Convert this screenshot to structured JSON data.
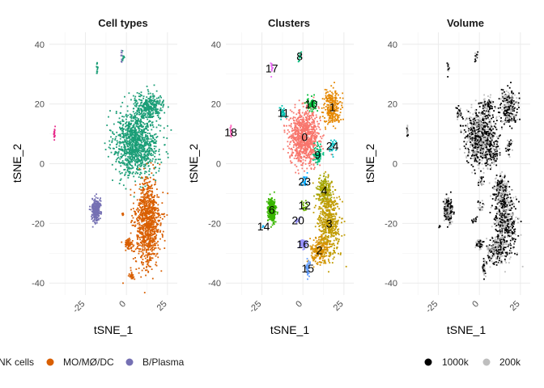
{
  "chart_data": [
    {
      "type": "scatter",
      "title": "Cell types",
      "xlabel": "tSNE_1",
      "ylabel": "tSNE_2",
      "xticks": [
        "-25",
        "0",
        "25"
      ],
      "yticks": [
        "-40",
        "-20",
        "0",
        "20",
        "40"
      ],
      "xlim": [
        -47,
        31
      ],
      "ylim": [
        -44,
        44
      ],
      "grid": true,
      "groups": [
        {
          "name": "NK cells",
          "color": "#1B9E77",
          "clusters": [
            {
              "center": [
                6,
                7
              ],
              "spread": [
                12,
                10
              ],
              "count": 1100
            },
            {
              "center": [
                14,
                19
              ],
              "spread": [
                8,
                4
              ],
              "count": 300
            },
            {
              "center": [
                -18,
                32
              ],
              "spread": [
                0.6,
                2
              ],
              "count": 14
            },
            {
              "center": [
                -2,
                36
              ],
              "spread": [
                1,
                2
              ],
              "count": 10
            }
          ]
        },
        {
          "name": "MO/MØ/DC",
          "color": "#D95F02",
          "clusters": [
            {
              "center": [
                13,
                -20
              ],
              "spread": [
                7,
                13
              ],
              "count": 950
            },
            {
              "center": [
                1,
                -27
              ],
              "spread": [
                2,
                1.5
              ],
              "count": 70
            },
            {
              "center": [
                3,
                -37
              ],
              "spread": [
                1.5,
                2
              ],
              "count": 25
            },
            {
              "center": [
                -2,
                -17
              ],
              "spread": [
                0.6,
                0.6
              ],
              "count": 6
            }
          ]
        },
        {
          "name": "B/Plasma",
          "color": "#7570B3",
          "clusters": [
            {
              "center": [
                -18.5,
                -15.5
              ],
              "spread": [
                2.2,
                3.5
              ],
              "count": 300
            },
            {
              "center": [
                -3,
                36
              ],
              "spread": [
                0.4,
                2
              ],
              "count": 10
            }
          ]
        },
        {
          "name": "",
          "color": "#E7298A",
          "clusters": [
            {
              "center": [
                -44,
                10.5
              ],
              "spread": [
                0.4,
                1.8
              ],
              "count": 18
            }
          ]
        }
      ],
      "legend": [
        "NK cells",
        "MO/MØ/DC",
        "B/Plasma"
      ],
      "legend_position": "bottom"
    },
    {
      "type": "scatter",
      "title": "Clusters",
      "xlabel": "tSNE_1",
      "ylabel": "tSNE_2",
      "xticks": [
        "-25",
        "0",
        "25"
      ],
      "yticks": [
        "-40",
        "-20",
        "0",
        "20",
        "40"
      ],
      "xlim": [
        -47,
        31
      ],
      "ylim": [
        -44,
        44
      ],
      "grid": true,
      "clusters": [
        {
          "label": "0",
          "center": [
            1,
            9
          ],
          "spread": [
            8,
            8
          ],
          "count": 900,
          "color": "#F8766D"
        },
        {
          "label": "1",
          "center": [
            18,
            19
          ],
          "spread": [
            5,
            5
          ],
          "count": 250,
          "color": "#E58700"
        },
        {
          "label": "10",
          "center": [
            5,
            20
          ],
          "spread": [
            3,
            2
          ],
          "count": 70,
          "color": "#00BA38"
        },
        {
          "label": "11",
          "center": [
            -12,
            17
          ],
          "spread": [
            2,
            2
          ],
          "count": 35,
          "color": "#00C0AF"
        },
        {
          "label": "9",
          "center": [
            9,
            3
          ],
          "spread": [
            2.5,
            3
          ],
          "count": 70,
          "color": "#00BF7D"
        },
        {
          "label": "24",
          "center": [
            18,
            6
          ],
          "spread": [
            2,
            2
          ],
          "count": 25,
          "color": "#00BFC4"
        },
        {
          "label": "23",
          "center": [
            1,
            -6
          ],
          "spread": [
            2,
            2
          ],
          "count": 25,
          "color": "#00A9FF"
        },
        {
          "label": "4",
          "center": [
            13,
            -9
          ],
          "spread": [
            4,
            4
          ],
          "count": 180,
          "color": "#A3A500"
        },
        {
          "label": "3",
          "center": [
            16,
            -20
          ],
          "spread": [
            6,
            10
          ],
          "count": 500,
          "color": "#C09B00"
        },
        {
          "label": "2",
          "center": [
            10,
            -29
          ],
          "spread": [
            5,
            4
          ],
          "count": 200,
          "color": "#D89000"
        },
        {
          "label": "12",
          "center": [
            1,
            -14
          ],
          "spread": [
            2,
            2
          ],
          "count": 20,
          "color": "#6BB100"
        },
        {
          "label": "20",
          "center": [
            -3,
            -19
          ],
          "spread": [
            1.5,
            1.5
          ],
          "count": 12,
          "color": "#9590FF"
        },
        {
          "label": "6",
          "center": [
            -19,
            -15.5
          ],
          "spread": [
            2.2,
            3.5
          ],
          "count": 300,
          "color": "#39B600"
        },
        {
          "label": "14",
          "center": [
            -24,
            -21
          ],
          "spread": [
            1,
            1
          ],
          "count": 6,
          "color": "#00B0F6"
        },
        {
          "label": "16",
          "center": [
            0,
            -27
          ],
          "spread": [
            2,
            1.5
          ],
          "count": 60,
          "color": "#9590FF"
        },
        {
          "label": "15",
          "center": [
            3,
            -35
          ],
          "spread": [
            1,
            3
          ],
          "count": 35,
          "color": "#619CFF"
        },
        {
          "label": "17",
          "center": [
            -19,
            32
          ],
          "spread": [
            0.6,
            2
          ],
          "count": 14,
          "color": "#E76BF3"
        },
        {
          "label": "18",
          "center": [
            -44,
            10.5
          ],
          "spread": [
            0.4,
            1.8
          ],
          "count": 18,
          "color": "#FF62BC"
        },
        {
          "label": "8",
          "center": [
            -2,
            36
          ],
          "spread": [
            1,
            2
          ],
          "count": 12,
          "color": "#00BF7D"
        }
      ]
    },
    {
      "type": "scatter",
      "title": "Volume",
      "xlabel": "tSNE_1",
      "ylabel": "tSNE_2",
      "xticks": [
        "-25",
        "0",
        "25"
      ],
      "yticks": [
        "-40",
        "-20",
        "0",
        "20",
        "40"
      ],
      "xlim": [
        -47,
        31
      ],
      "ylim": [
        -44,
        44
      ],
      "grid": true,
      "groups": [
        {
          "name": "1000k",
          "color": "#000000"
        },
        {
          "name": "200k",
          "color": "#BEBEBE"
        }
      ],
      "legend": [
        "1000k",
        "200k"
      ],
      "legend_position": "bottom"
    }
  ]
}
